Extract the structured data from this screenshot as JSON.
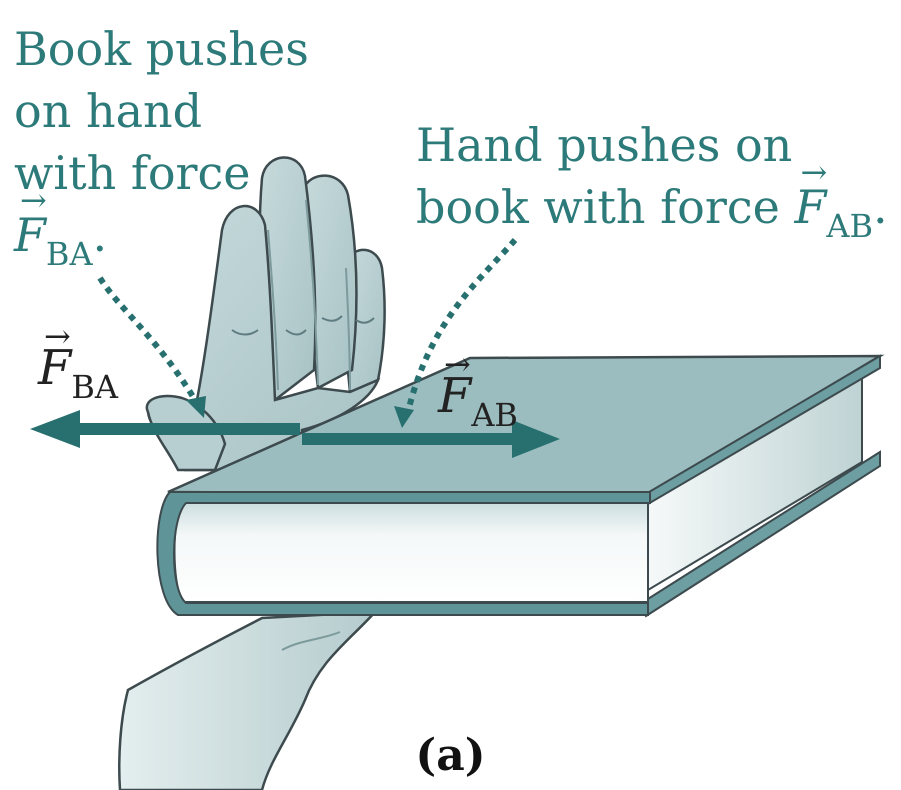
{
  "labels": {
    "book_on_hand": {
      "lines": [
        "Book pushes",
        "on hand",
        "with force"
      ],
      "symbol": "F",
      "subscript": "BA",
      "punct": "."
    },
    "hand_on_book": {
      "lines": [
        "Hand pushes on",
        "book with force"
      ],
      "symbol": "F",
      "subscript": "AB",
      "punct": "."
    },
    "arrow_f_ba": {
      "symbol": "F",
      "subscript": "BA"
    },
    "arrow_f_ab": {
      "symbol": "F",
      "subscript": "AB"
    },
    "vector_arrow_glyph": "→"
  },
  "caption": "(a)",
  "colors": {
    "teal": "#2c7a79",
    "force_arrow": "#27706f",
    "hand_fill": "#bcd3d5",
    "hand_shade": "#9cb9bc",
    "outline": "#3d4a4e",
    "book_cover": "#9cbdbf",
    "book_spine": "#5f9498",
    "page_edge": "#eef3f3"
  }
}
